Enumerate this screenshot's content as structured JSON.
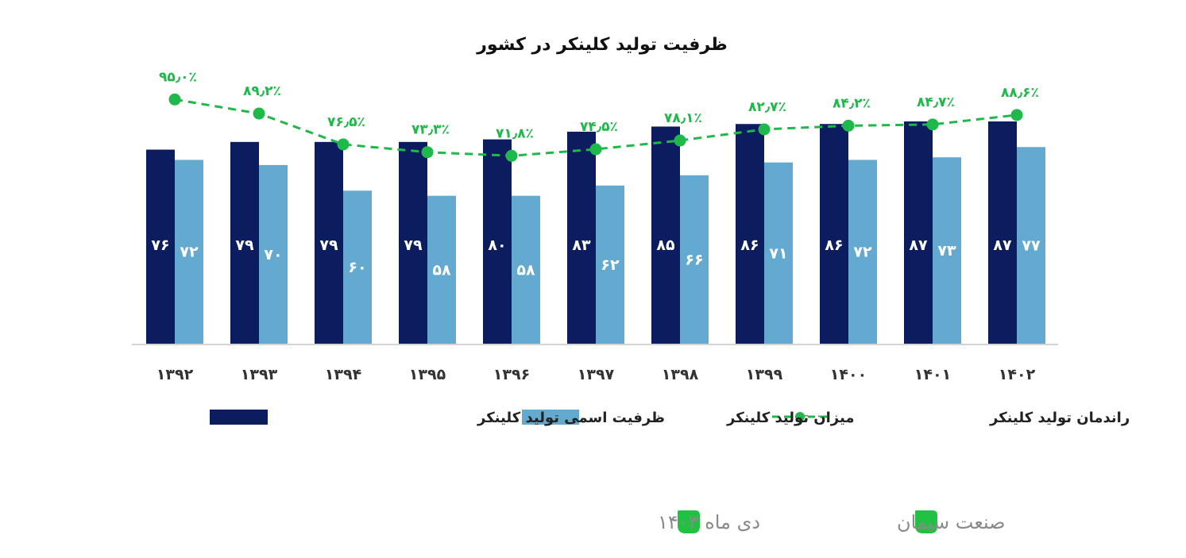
{
  "chart_data": {
    "type": "bar",
    "title": "ظرفیت تولید کلینکر در کشور",
    "categories": [
      "۱۳۹۲",
      "۱۳۹۳",
      "۱۳۹۴",
      "۱۳۹۵",
      "۱۳۹۶",
      "۱۳۹۷",
      "۱۳۹۸",
      "۱۳۹۹",
      "۱۴۰۰",
      "۱۴۰۱",
      "۱۴۰۲"
    ],
    "series": [
      {
        "name": "ظرفیت اسمی تولید کلینکر",
        "kind": "bar",
        "color": "#0b1d5e",
        "values": [
          76,
          79,
          79,
          79,
          80,
          83,
          85,
          86,
          86,
          87,
          87
        ],
        "labels": [
          "۷۶",
          "۷۹",
          "۷۹",
          "۷۹",
          "۸۰",
          "۸۳",
          "۸۵",
          "۸۶",
          "۸۶",
          "۸۷",
          "۸۷"
        ]
      },
      {
        "name": "میزان تولید کلینکر",
        "kind": "bar",
        "color": "#64a9cf",
        "values": [
          72,
          70,
          60,
          58,
          58,
          62,
          66,
          71,
          72,
          73,
          77
        ],
        "labels": [
          "۷۲",
          "۷۰",
          "۶۰",
          "۵۸",
          "۵۸",
          "۶۲",
          "۶۶",
          "۷۱",
          "۷۲",
          "۷۳",
          "۷۷"
        ]
      },
      {
        "name": "راندمان تولید کلینکر",
        "kind": "line",
        "style": "dashed",
        "color": "#1fb84a",
        "values": [
          95.0,
          89.2,
          76.5,
          73.3,
          71.8,
          74.5,
          78.1,
          82.7,
          84.2,
          84.7,
          88.6
        ],
        "labels": [
          "۹۵٫۰٪",
          "۸۹٫۲٪",
          "۷۶٫۵٪",
          "۷۳٫۳٪",
          "۷۱٫۸٪",
          "۷۴٫۵٪",
          "۷۸٫۱٪",
          "۸۲٫۷٪",
          "۸۴٫۲٪",
          "۸۴٫۷٪",
          "۸۸٫۶٪"
        ]
      }
    ],
    "ylim": [
      0,
      100
    ],
    "line_ylim": [
      0,
      100
    ],
    "grid": false,
    "legend": "bottom"
  },
  "footer": {
    "date": "دی ماه ۱۴۰۳",
    "source": "صنعت سیمان",
    "leaf_color": "#22c043"
  }
}
